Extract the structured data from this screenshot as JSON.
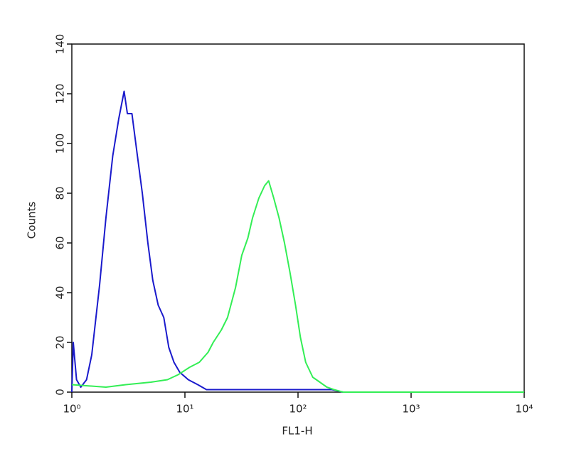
{
  "chart_data": {
    "type": "line",
    "x_label": "FL1-H",
    "y_label": "Counts",
    "x_scale": "log",
    "xlim": [
      1,
      10000
    ],
    "xticks": [
      {
        "value": 1,
        "label": "10⁰"
      },
      {
        "value": 10,
        "label": "10¹"
      },
      {
        "value": 100,
        "label": "10²"
      },
      {
        "value": 1000,
        "label": "10³"
      },
      {
        "value": 10000,
        "label": "10⁴"
      }
    ],
    "ylim": [
      0,
      140
    ],
    "yticks": [
      0,
      20,
      40,
      60,
      80,
      100,
      120,
      140
    ],
    "grid": false,
    "series": [
      {
        "color": "#1a1acc",
        "x": [
          1,
          1.03,
          1.1,
          1.2,
          1.35,
          1.5,
          1.76,
          2.0,
          2.3,
          2.6,
          2.9,
          3.1,
          3.4,
          3.8,
          4.2,
          4.7,
          5.2,
          5.8,
          6.5,
          7.2,
          8.0,
          9.0,
          10.7,
          13,
          15.5,
          20,
          40,
          80,
          150,
          200,
          250
        ],
        "values": [
          0,
          20,
          5,
          2,
          5,
          15,
          43,
          70,
          95,
          110,
          121,
          112,
          112,
          95,
          80,
          60,
          45,
          35,
          30,
          18,
          12,
          8,
          5,
          3,
          1,
          1,
          1,
          1,
          1,
          1,
          0
        ]
      },
      {
        "color": "#33ee55",
        "x": [
          1,
          2,
          3,
          5,
          7,
          8.7,
          11,
          13.4,
          16,
          17.8,
          21,
          23.8,
          28,
          31.8,
          36,
          39.6,
          45,
          50.6,
          55,
          61,
          68,
          76,
          85,
          95,
          105,
          117,
          135,
          156,
          180,
          208,
          250,
          500,
          1000,
          10000
        ],
        "values": [
          3,
          2,
          3,
          4,
          5,
          7,
          10,
          12,
          16,
          20,
          25,
          30,
          42,
          55,
          62,
          70,
          78,
          83,
          85,
          78,
          70,
          60,
          48,
          35,
          22,
          12,
          6,
          4,
          2,
          1,
          0,
          0,
          0,
          0
        ]
      }
    ]
  }
}
